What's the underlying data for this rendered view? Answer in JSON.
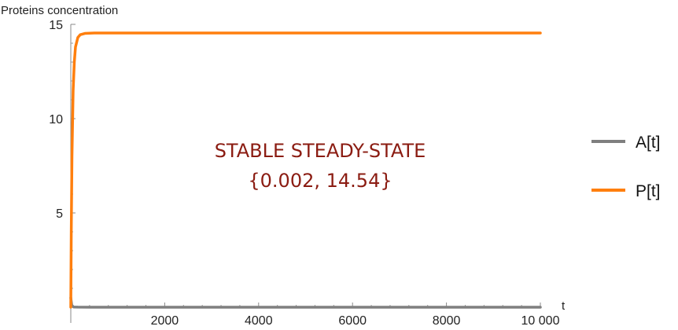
{
  "chart_data": {
    "type": "line",
    "ylabel": "Proteins concentration",
    "xlabel": "t",
    "xlim": [
      0,
      10000
    ],
    "ylim": [
      0,
      15
    ],
    "x_ticks": [
      2000,
      4000,
      6000,
      8000,
      10000
    ],
    "x_tick_labels": [
      "2000",
      "4000",
      "6000",
      "8000",
      "10 000"
    ],
    "y_ticks": [
      5,
      10,
      15
    ],
    "y_tick_labels": [
      "5",
      "10",
      "15"
    ],
    "series": [
      {
        "name": "A[t]",
        "color": "#7f7f7f",
        "x": [
          0,
          20,
          60,
          150,
          400,
          1000,
          5000,
          10000
        ],
        "y": [
          0.5,
          0.1,
          0.01,
          0.003,
          0.002,
          0.002,
          0.002,
          0.002
        ]
      },
      {
        "name": "P[t]",
        "color": "#ff7f0e",
        "x": [
          0,
          10,
          25,
          50,
          75,
          100,
          150,
          200,
          300,
          500,
          1000,
          2000,
          5000,
          10000
        ],
        "y": [
          0,
          4.0,
          8.0,
          11.5,
          13.0,
          13.8,
          14.3,
          14.45,
          14.52,
          14.54,
          14.54,
          14.54,
          14.54,
          14.54
        ]
      }
    ],
    "legend": "right",
    "annotations": [
      "STABLE STEADY-STATE",
      "{0.002, 14.54}"
    ]
  }
}
